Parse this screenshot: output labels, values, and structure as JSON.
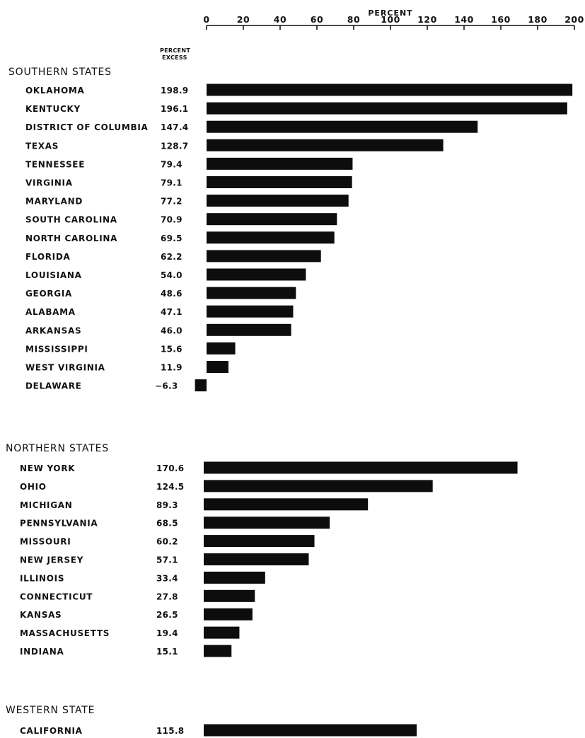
{
  "chart_data": {
    "type": "bar",
    "orientation": "horizontal",
    "axis": {
      "label": "PERCENT",
      "ticks": [
        "0",
        "20",
        "40",
        "60",
        "80",
        "100",
        "120",
        "140",
        "160",
        "180",
        "200"
      ],
      "xlim": [
        0,
        200
      ],
      "position": "top"
    },
    "value_column_header": [
      "PERCENT",
      "EXCESS"
    ],
    "groups": [
      {
        "name": "SOUTHERN STATES",
        "categories": [
          "OKLAHOMA",
          "KENTUCKY",
          "DISTRICT OF COLUMBIA",
          "TEXAS",
          "TENNESSEE",
          "VIRGINIA",
          "MARYLAND",
          "SOUTH CAROLINA",
          "NORTH CAROLINA",
          "FLORIDA",
          "LOUISIANA",
          "GEORGIA",
          "ALABAMA",
          "ARKANSAS",
          "MISSISSIPPI",
          "WEST VIRGINIA",
          "DELAWARE"
        ],
        "values": [
          198.9,
          196.1,
          147.4,
          128.7,
          79.4,
          79.1,
          77.2,
          70.9,
          69.5,
          62.2,
          54.0,
          48.6,
          47.1,
          46.0,
          15.6,
          11.9,
          -6.3
        ],
        "value_labels": [
          "198.9",
          "196.1",
          "147.4",
          "128.7",
          "79.4",
          "79.1",
          "77.2",
          "70.9",
          "69.5",
          "62.2",
          "54.0",
          "48.6",
          "47.1",
          "46.0",
          "15.6",
          "11.9",
          "−6.3"
        ]
      },
      {
        "name": "NORTHERN STATES",
        "categories": [
          "NEW YORK",
          "OHIO",
          "MICHIGAN",
          "PENNSYLVANIA",
          "MISSOURI",
          "NEW JERSEY",
          "ILLINOIS",
          "CONNECTICUT",
          "KANSAS",
          "MASSACHUSETTS",
          "INDIANA"
        ],
        "values": [
          170.6,
          124.5,
          89.3,
          68.5,
          60.2,
          57.1,
          33.4,
          27.8,
          26.5,
          19.4,
          15.1
        ],
        "value_labels": [
          "170.6",
          "124.5",
          "89.3",
          "68.5",
          "60.2",
          "57.1",
          "33.4",
          "27.8",
          "26.5",
          "19.4",
          "15.1"
        ]
      },
      {
        "name": "WESTERN STATE",
        "categories": [
          "CALIFORNIA"
        ],
        "values": [
          115.8
        ],
        "value_labels": [
          "115.8"
        ]
      }
    ],
    "bar_color": "#0d0d0d",
    "grid": false,
    "legend": "none"
  }
}
